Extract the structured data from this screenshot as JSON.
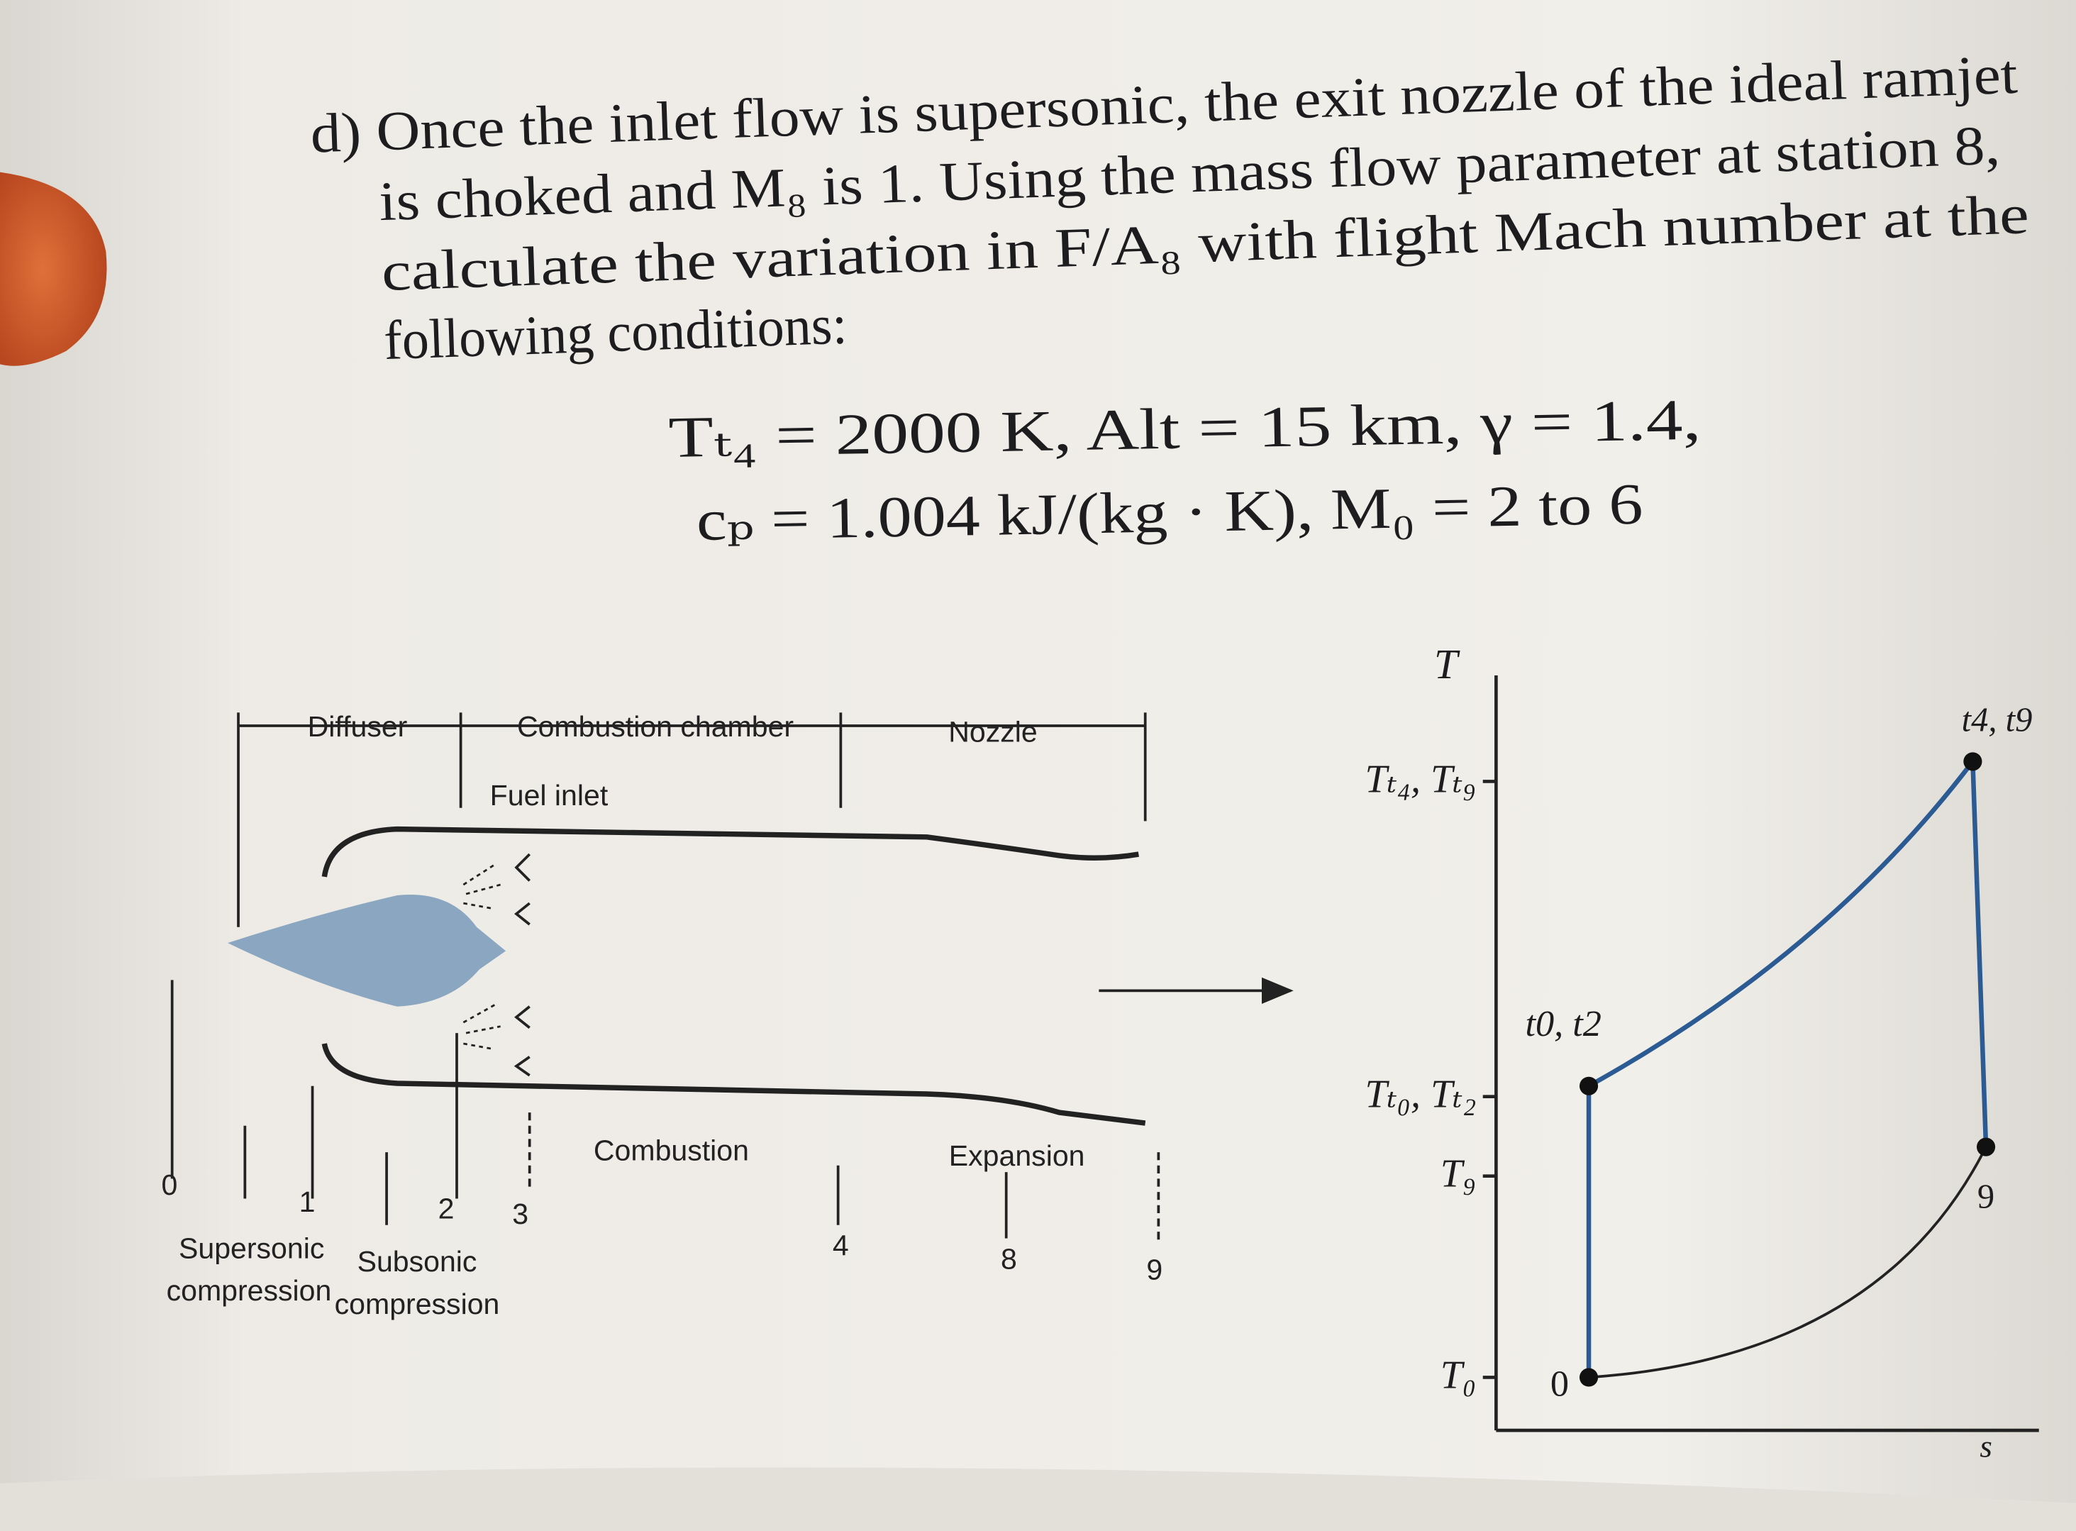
{
  "problem": {
    "lines": [
      "d) Once the inlet flow is supersonic, the exit nozzle of the ideal ramjet",
      "is choked and M₈ is 1. Using the mass flow parameter at station 8,",
      "calculate the variation in F/A₈ with flight Mach number at the",
      "following conditions:"
    ],
    "equations": [
      "Tₜ₄ = 2000 K,   Alt = 15 km,   γ = 1.4,",
      "cₚ = 1.004 kJ/(kg · K),   M₀ = 2 to 6"
    ]
  },
  "engine_diagram": {
    "sections": [
      "Diffuser",
      "Combustion chamber",
      "Nozzle"
    ],
    "fuel_inlet": "Fuel inlet",
    "processes": [
      "Combustion",
      "Expansion"
    ],
    "stations": [
      "0",
      "1",
      "2",
      "3",
      "4",
      "8",
      "9"
    ],
    "supersonic_label": [
      "Supersonic",
      "compression"
    ],
    "subsonic_label": [
      "Subsonic",
      "compression"
    ]
  },
  "ts_diagram": {
    "axis_y": "T",
    "axis_x": "s",
    "temperature_labels": [
      "Tₜ₄, Tₜ₉",
      "Tₜ₀, Tₜ₂",
      "T₉",
      "T₀"
    ],
    "point_labels": [
      "t4, t9",
      "t0, t2",
      "0",
      "9"
    ]
  }
}
